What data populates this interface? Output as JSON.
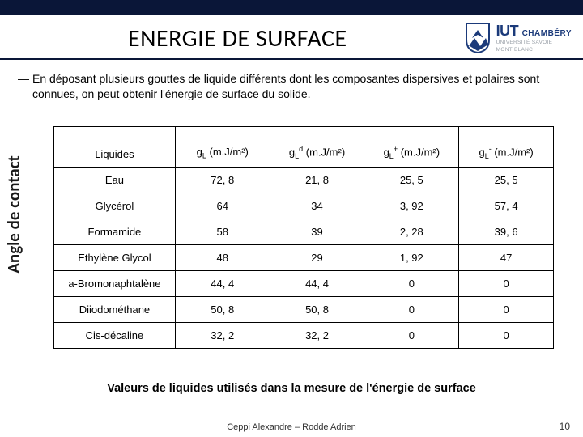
{
  "title": "ENERGIE DE SURFACE",
  "logo": {
    "iut": "IUT",
    "chambery": "CHAMBÉRY",
    "sub1": "UNIVERSITÉ SAVOIE",
    "sub2": "MONT BLANC"
  },
  "body": "En déposant plusieurs gouttes de liquide différents dont les composantes dispersives et polaires sont connues, on peut obtenir l'énergie de surface du solide.",
  "sidebar": "Angle de contact",
  "table": {
    "columns": [
      "Liquides",
      "gL (m.J/m²)",
      "gLd (m.J/m²)",
      "gL+ (m.J/m²)",
      "gL- (m.J/m²)"
    ],
    "rows": [
      [
        "Eau",
        "72, 8",
        "21, 8",
        "25, 5",
        "25, 5"
      ],
      [
        "Glycérol",
        "64",
        "34",
        "3, 92",
        "57, 4"
      ],
      [
        "Formamide",
        "58",
        "39",
        "2, 28",
        "39, 6"
      ],
      [
        "Ethylène Glycol",
        "48",
        "29",
        "1, 92",
        "47"
      ],
      [
        "a-Bromonaphtalène",
        "44, 4",
        "44, 4",
        "0",
        "0"
      ],
      [
        "Diiodométhane",
        "50, 8",
        "50, 8",
        "0",
        "0"
      ],
      [
        "Cis-décaline",
        "32, 2",
        "32, 2",
        "0",
        "0"
      ]
    ]
  },
  "caption": "Valeurs de liquides utilisés dans la mesure de l'énergie de surface",
  "footer": "Ceppi Alexandre – Rodde Adrien",
  "page": "10"
}
